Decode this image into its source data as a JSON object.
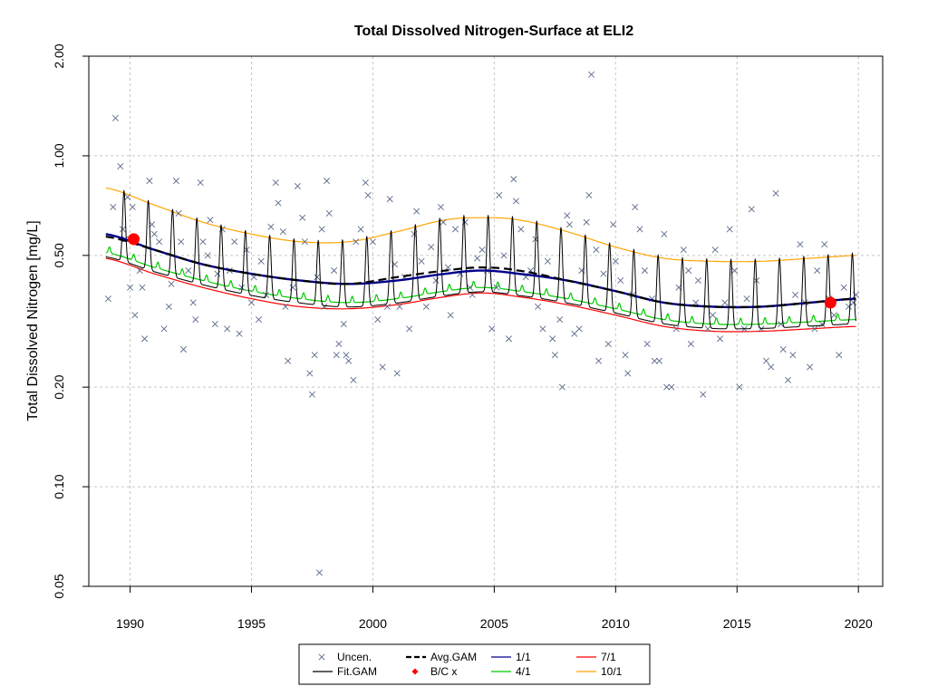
{
  "chart_data": {
    "type": "line",
    "title": "Total Dissolved Nitrogen-Surface at ELI2",
    "xlabel": "",
    "ylabel": "Total Dissolved Nitrogen [mg/L]",
    "y_scale": "log",
    "xlim": [
      1988.3,
      2021.0
    ],
    "ylim": [
      0.05,
      2.0
    ],
    "x_ticks": [
      1990,
      1995,
      2000,
      2005,
      2010,
      2015,
      2020
    ],
    "y_ticks": [
      0.05,
      0.1,
      0.2,
      0.5,
      1.0,
      2.0
    ],
    "y_tick_labels": [
      "0.05",
      "0.10",
      "0.20",
      "0.50",
      "1.00",
      "2.00"
    ],
    "grid": true,
    "legend_position": "bottom",
    "legend": [
      {
        "label": "Uncen.",
        "key": "uncen",
        "color": "#5a6a8a",
        "style": "cross"
      },
      {
        "label": "Fit.GAM",
        "key": "fit",
        "color": "#000000",
        "style": "line"
      },
      {
        "label": "Avg.GAM",
        "key": "avg",
        "color": "#000000",
        "style": "dashed"
      },
      {
        "label": "B/C x",
        "key": "bc",
        "color": "#ff0000",
        "style": "diamond"
      },
      {
        "label": "1/1",
        "key": "d1",
        "color": "#00008b",
        "style": "line"
      },
      {
        "label": "4/1",
        "key": "d4",
        "color": "#00cc00",
        "style": "line"
      },
      {
        "label": "7/1",
        "key": "d7",
        "color": "#ff0000",
        "style": "line"
      },
      {
        "label": "10/1",
        "key": "d10",
        "color": "#ffa500",
        "style": "line"
      }
    ],
    "colors": {
      "uncen": "#5a6a8a",
      "fit": "#000000",
      "avg": "#000000",
      "d1": "#00008b",
      "d4": "#00cc00",
      "d7": "#ff0000",
      "d10": "#ffa500",
      "bc": "#ff0000"
    },
    "series_knots": {
      "d1": {
        "x": [
          1989.0,
          1991,
          1993,
          1995,
          1997,
          1999,
          2001,
          2003,
          2004.5,
          2006,
          2008,
          2010,
          2012,
          2014,
          2016,
          2018,
          2019.9
        ],
        "y": [
          0.58,
          0.52,
          0.47,
          0.44,
          0.42,
          0.41,
          0.42,
          0.44,
          0.45,
          0.44,
          0.42,
          0.39,
          0.36,
          0.35,
          0.35,
          0.36,
          0.37
        ]
      },
      "avg": {
        "x": [
          1989.0,
          1991,
          1993,
          1995,
          1997,
          1999,
          2001,
          2003,
          2004.5,
          2006,
          2008,
          2010,
          2012,
          2014,
          2016,
          2018,
          2019.9
        ],
        "y": [
          0.57,
          0.52,
          0.47,
          0.44,
          0.42,
          0.41,
          0.43,
          0.45,
          0.46,
          0.45,
          0.42,
          0.39,
          0.36,
          0.35,
          0.35,
          0.36,
          0.37
        ]
      },
      "d10": {
        "x": [
          1989.0,
          1991,
          1993,
          1995,
          1997,
          1999,
          2001,
          2003,
          2004.5,
          2006,
          2008,
          2010,
          2012,
          2014,
          2016,
          2018,
          2019.9
        ],
        "y": [
          0.8,
          0.71,
          0.63,
          0.58,
          0.55,
          0.55,
          0.59,
          0.64,
          0.65,
          0.64,
          0.59,
          0.53,
          0.49,
          0.48,
          0.48,
          0.49,
          0.5
        ]
      },
      "d4": {
        "x": [
          1989.0,
          1991,
          1993,
          1995,
          1997,
          1999,
          2001,
          2003,
          2004.5,
          2006,
          2008,
          2010,
          2012,
          2014,
          2016,
          2018,
          2019.9
        ],
        "y": [
          0.51,
          0.46,
          0.42,
          0.39,
          0.37,
          0.36,
          0.37,
          0.39,
          0.4,
          0.39,
          0.37,
          0.345,
          0.32,
          0.31,
          0.31,
          0.315,
          0.32
        ]
      },
      "d7": {
        "x": [
          1989.0,
          1991,
          1993,
          1995,
          1997,
          1999,
          2001,
          2003,
          2004.5,
          2006,
          2008,
          2010,
          2012,
          2014,
          2016,
          2018,
          2019.9
        ],
        "y": [
          0.49,
          0.44,
          0.4,
          0.37,
          0.35,
          0.345,
          0.355,
          0.375,
          0.385,
          0.375,
          0.355,
          0.33,
          0.305,
          0.295,
          0.295,
          0.3,
          0.305
        ]
      }
    },
    "fit_gam": {
      "x_start": 1989.0,
      "x_end": 2019.9,
      "peak_phase": 0.75,
      "upper_band": "d10",
      "lower_band": "d4"
    },
    "bc_points": [
      {
        "x": 1990.15,
        "y": 0.56
      },
      {
        "x": 2018.85,
        "y": 0.36
      }
    ],
    "uncen_points": [
      [
        1989.1,
        0.37
      ],
      [
        1989.3,
        0.7
      ],
      [
        1989.4,
        1.3
      ],
      [
        1989.6,
        0.93
      ],
      [
        1989.7,
        0.6
      ],
      [
        1989.8,
        0.56
      ],
      [
        1989.9,
        0.75
      ],
      [
        1990.0,
        0.4
      ],
      [
        1990.1,
        0.7
      ],
      [
        1990.2,
        0.33
      ],
      [
        1990.4,
        0.45
      ],
      [
        1990.5,
        0.4
      ],
      [
        1990.6,
        0.28
      ],
      [
        1990.8,
        0.84
      ],
      [
        1990.9,
        0.62
      ],
      [
        1991.0,
        0.58
      ],
      [
        1991.2,
        0.55
      ],
      [
        1991.4,
        0.3
      ],
      [
        1991.6,
        0.35
      ],
      [
        1991.7,
        0.41
      ],
      [
        1991.9,
        0.84
      ],
      [
        1992.0,
        0.67
      ],
      [
        1992.1,
        0.55
      ],
      [
        1992.2,
        0.26
      ],
      [
        1992.4,
        0.45
      ],
      [
        1992.6,
        0.36
      ],
      [
        1992.7,
        0.32
      ],
      [
        1992.9,
        0.83
      ],
      [
        1993.0,
        0.55
      ],
      [
        1993.2,
        0.5
      ],
      [
        1993.3,
        0.64
      ],
      [
        1993.5,
        0.31
      ],
      [
        1993.6,
        0.44
      ],
      [
        1993.8,
        0.6
      ],
      [
        1994.0,
        0.3
      ],
      [
        1994.1,
        0.45
      ],
      [
        1994.3,
        0.55
      ],
      [
        1994.5,
        0.29
      ],
      [
        1994.6,
        0.4
      ],
      [
        1994.8,
        0.52
      ],
      [
        1995.0,
        0.36
      ],
      [
        1995.1,
        0.43
      ],
      [
        1995.3,
        0.32
      ],
      [
        1995.4,
        0.48
      ],
      [
        1995.6,
        0.38
      ],
      [
        1995.8,
        0.61
      ],
      [
        1996.0,
        0.83
      ],
      [
        1996.1,
        0.72
      ],
      [
        1996.3,
        0.59
      ],
      [
        1996.4,
        0.35
      ],
      [
        1996.5,
        0.24
      ],
      [
        1996.7,
        0.4
      ],
      [
        1996.9,
        0.81
      ],
      [
        1997.1,
        0.65
      ],
      [
        1997.2,
        0.55
      ],
      [
        1997.4,
        0.22
      ],
      [
        1997.5,
        0.19
      ],
      [
        1997.6,
        0.25
      ],
      [
        1997.7,
        0.43
      ],
      [
        1997.8,
        0.055
      ],
      [
        1997.9,
        0.6
      ],
      [
        1998.0,
        0.35
      ],
      [
        1998.1,
        0.84
      ],
      [
        1998.2,
        0.67
      ],
      [
        1998.4,
        0.45
      ],
      [
        1998.5,
        0.25
      ],
      [
        1998.6,
        0.27
      ],
      [
        1998.8,
        0.31
      ],
      [
        1998.9,
        0.25
      ],
      [
        1999.0,
        0.24
      ],
      [
        1999.2,
        0.21
      ],
      [
        1999.3,
        0.55
      ],
      [
        1999.5,
        0.6
      ],
      [
        1999.7,
        0.83
      ],
      [
        1999.8,
        0.76
      ],
      [
        2000.0,
        0.55
      ],
      [
        2000.2,
        0.32
      ],
      [
        2000.4,
        0.23
      ],
      [
        2000.6,
        0.35
      ],
      [
        2000.7,
        0.74
      ],
      [
        2000.9,
        0.47
      ],
      [
        2001.0,
        0.22
      ],
      [
        2001.1,
        0.35
      ],
      [
        2001.3,
        0.43
      ],
      [
        2001.5,
        0.3
      ],
      [
        2001.7,
        0.58
      ],
      [
        2001.8,
        0.68
      ],
      [
        2002.0,
        0.48
      ],
      [
        2002.2,
        0.35
      ],
      [
        2002.4,
        0.53
      ],
      [
        2002.6,
        0.42
      ],
      [
        2002.8,
        0.7
      ],
      [
        2002.9,
        0.63
      ],
      [
        2003.1,
        0.46
      ],
      [
        2003.2,
        0.33
      ],
      [
        2003.4,
        0.6
      ],
      [
        2003.6,
        0.44
      ],
      [
        2003.8,
        0.63
      ],
      [
        2004.0,
        0.4
      ],
      [
        2004.1,
        0.38
      ],
      [
        2004.3,
        0.49
      ],
      [
        2004.5,
        0.52
      ],
      [
        2004.7,
        0.45
      ],
      [
        2004.9,
        0.3
      ],
      [
        2005.1,
        0.4
      ],
      [
        2005.2,
        0.76
      ],
      [
        2005.4,
        0.5
      ],
      [
        2005.6,
        0.28
      ],
      [
        2005.8,
        0.85
      ],
      [
        2005.9,
        0.73
      ],
      [
        2006.1,
        0.6
      ],
      [
        2006.3,
        0.43
      ],
      [
        2006.5,
        0.45
      ],
      [
        2006.7,
        0.56
      ],
      [
        2006.8,
        0.35
      ],
      [
        2007.0,
        0.3
      ],
      [
        2007.2,
        0.48
      ],
      [
        2007.4,
        0.28
      ],
      [
        2007.5,
        0.25
      ],
      [
        2007.7,
        0.32
      ],
      [
        2007.8,
        0.2
      ],
      [
        2008.0,
        0.66
      ],
      [
        2008.1,
        0.62
      ],
      [
        2008.3,
        0.29
      ],
      [
        2008.5,
        0.3
      ],
      [
        2008.6,
        0.45
      ],
      [
        2008.8,
        0.63
      ],
      [
        2008.9,
        0.76
      ],
      [
        2009.0,
        1.76
      ],
      [
        2009.2,
        0.52
      ],
      [
        2009.3,
        0.24
      ],
      [
        2009.5,
        0.44
      ],
      [
        2009.7,
        0.27
      ],
      [
        2009.9,
        0.62
      ],
      [
        2010.0,
        0.48
      ],
      [
        2010.2,
        0.42
      ],
      [
        2010.4,
        0.25
      ],
      [
        2010.5,
        0.22
      ],
      [
        2010.7,
        0.38
      ],
      [
        2010.8,
        0.7
      ],
      [
        2011.0,
        0.6
      ],
      [
        2011.2,
        0.45
      ],
      [
        2011.3,
        0.27
      ],
      [
        2011.5,
        0.37
      ],
      [
        2011.6,
        0.24
      ],
      [
        2011.8,
        0.24
      ],
      [
        2012.0,
        0.58
      ],
      [
        2012.1,
        0.2
      ],
      [
        2012.3,
        0.2
      ],
      [
        2012.5,
        0.3
      ],
      [
        2012.6,
        0.4
      ],
      [
        2012.8,
        0.52
      ],
      [
        2013.0,
        0.45
      ],
      [
        2013.1,
        0.27
      ],
      [
        2013.3,
        0.36
      ],
      [
        2013.4,
        0.42
      ],
      [
        2013.6,
        0.19
      ],
      [
        2013.8,
        0.3
      ],
      [
        2014.0,
        0.33
      ],
      [
        2014.1,
        0.52
      ],
      [
        2014.3,
        0.28
      ],
      [
        2014.5,
        0.36
      ],
      [
        2014.7,
        0.6
      ],
      [
        2014.9,
        0.45
      ],
      [
        2015.1,
        0.2
      ],
      [
        2015.3,
        0.3
      ],
      [
        2015.4,
        0.37
      ],
      [
        2015.6,
        0.69
      ],
      [
        2015.8,
        0.42
      ],
      [
        2016.0,
        0.3
      ],
      [
        2016.2,
        0.24
      ],
      [
        2016.4,
        0.23
      ],
      [
        2016.6,
        0.77
      ],
      [
        2016.8,
        0.31
      ],
      [
        2016.9,
        0.26
      ],
      [
        2017.1,
        0.21
      ],
      [
        2017.3,
        0.25
      ],
      [
        2017.4,
        0.38
      ],
      [
        2017.6,
        0.54
      ],
      [
        2017.8,
        0.36
      ],
      [
        2018.0,
        0.23
      ],
      [
        2018.2,
        0.3
      ],
      [
        2018.3,
        0.45
      ],
      [
        2018.5,
        0.31
      ],
      [
        2018.6,
        0.54
      ],
      [
        2018.8,
        0.37
      ],
      [
        2019.0,
        0.33
      ],
      [
        2019.2,
        0.25
      ],
      [
        2019.4,
        0.4
      ],
      [
        2019.6,
        0.35
      ],
      [
        2019.8,
        0.36
      ],
      [
        2019.9,
        0.38
      ]
    ]
  }
}
